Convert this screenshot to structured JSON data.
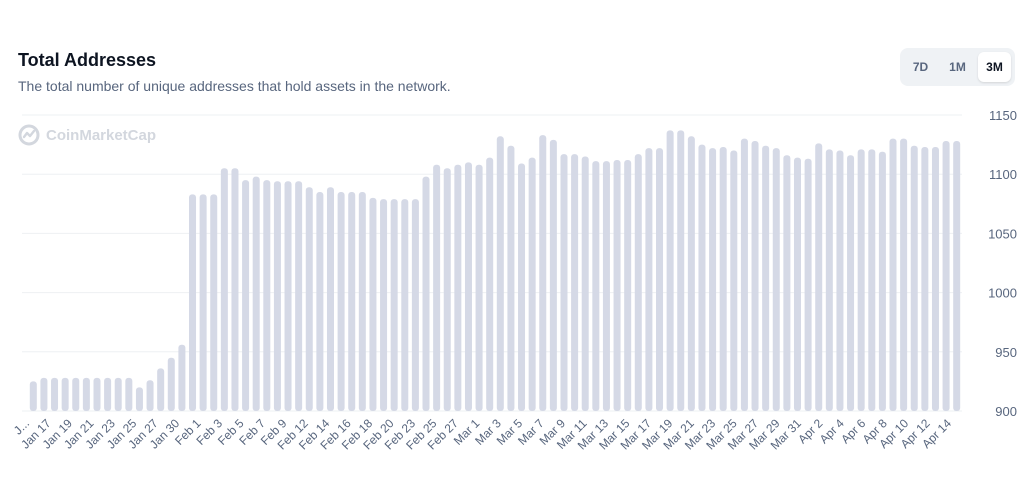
{
  "header": {
    "title": "Total Addresses",
    "subtitle": "The total number of unique addresses that hold assets in the network."
  },
  "range_buttons": [
    {
      "label": "7D",
      "active": false
    },
    {
      "label": "1M",
      "active": false
    },
    {
      "label": "3M",
      "active": true
    }
  ],
  "watermark": {
    "text": "CoinMarketCap",
    "icon": "coinmarketcap-logo-icon"
  },
  "colors": {
    "bar": "#d5d9e6",
    "grid": "#eef0f3",
    "axis_text": "#58667e",
    "active_button_bg": "#ffffff",
    "button_group_bg": "#eff2f5"
  },
  "chart_data": {
    "type": "bar",
    "title": "Total Addresses",
    "xlabel": "",
    "ylabel": "",
    "ylim": [
      900,
      1150
    ],
    "yticks": [
      900,
      950,
      1000,
      1050,
      1100,
      1150
    ],
    "grid": true,
    "y_axis_side": "right",
    "x_tick_labels": [
      "J...",
      "Jan 17",
      "Jan 19",
      "Jan 21",
      "Jan 23",
      "Jan 25",
      "Jan 27",
      "Jan 30",
      "Feb 1",
      "Feb 3",
      "Feb 5",
      "Feb 7",
      "Feb 9",
      "Feb 12",
      "Feb 14",
      "Feb 16",
      "Feb 18",
      "Feb 20",
      "Feb 23",
      "Feb 25",
      "Feb 27",
      "Mar 1",
      "Mar 3",
      "Mar 5",
      "Mar 7",
      "Mar 9",
      "Mar 11",
      "Mar 13",
      "Mar 15",
      "Mar 17",
      "Mar 19",
      "Mar 21",
      "Mar 23",
      "Mar 25",
      "Mar 27",
      "Mar 29",
      "Mar 31",
      "Apr 2",
      "Apr 4",
      "Apr 6",
      "Apr 8",
      "Apr 10",
      "Apr 12",
      "Apr 14"
    ],
    "values": [
      925,
      928,
      928,
      928,
      928,
      928,
      928,
      928,
      928,
      928,
      920,
      926,
      936,
      945,
      956,
      1083,
      1083,
      1083,
      1105,
      1105,
      1095,
      1098,
      1095,
      1094,
      1094,
      1094,
      1089,
      1085,
      1089,
      1085,
      1085,
      1085,
      1080,
      1079,
      1079,
      1079,
      1079,
      1098,
      1108,
      1105,
      1108,
      1110,
      1108,
      1114,
      1132,
      1124,
      1109,
      1114,
      1133,
      1129,
      1117,
      1117,
      1115,
      1111,
      1111,
      1112,
      1112,
      1117,
      1122,
      1122,
      1137,
      1137,
      1132,
      1125,
      1122,
      1123,
      1120,
      1130,
      1128,
      1124,
      1122,
      1116,
      1114,
      1113,
      1126,
      1121,
      1120,
      1116,
      1121,
      1121,
      1119,
      1130,
      1130,
      1124,
      1123,
      1123,
      1128,
      1128
    ]
  }
}
